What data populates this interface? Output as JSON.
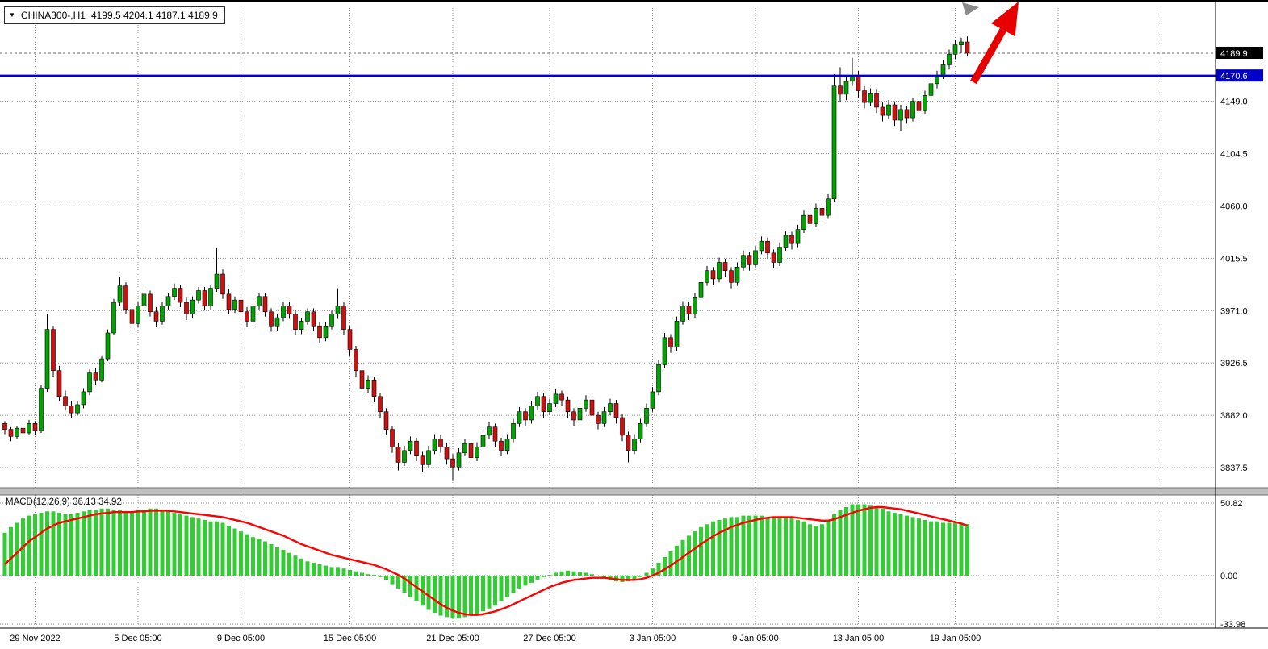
{
  "symbol_badge": {
    "dropdown_icon": "▼",
    "symbol": "CHINA300-,H1",
    "ohlc": "4199.5 4204.1 4187.1 4189.9"
  },
  "colors": {
    "up": "#00A400",
    "down": "#CC1111",
    "wick": "#000000",
    "grid": "#8C8C8C",
    "macd_hist": "#32CD32",
    "macd_signal": "#FF0000",
    "level_line": "#0000C8",
    "last_tag_bg": "#000000",
    "level_tag_bg": "#0000C8",
    "arrow": "#E60000",
    "cursor_gray": "#8A8A8A",
    "separator": "#BFBFBF",
    "axis_text": "#000000"
  },
  "chart_data": {
    "type": "candlestick",
    "symbol": "CHINA300-",
    "timeframe": "H1",
    "last_bar_ohlc": {
      "open": 4199.5,
      "high": 4204.1,
      "low": 4187.1,
      "close": 4189.9
    },
    "last_price_line": {
      "price": 4189.9,
      "label": "4189.9"
    },
    "horizontal_level": {
      "price": 4170.6,
      "label": "4170.6"
    },
    "price_axis": {
      "gridlines": [
        {
          "text": "4149.0",
          "value": 4149.0
        },
        {
          "text": "4104.5",
          "value": 4104.5
        },
        {
          "text": "4060.0",
          "value": 4060.0
        },
        {
          "text": "4015.5",
          "value": 4015.5
        },
        {
          "text": "3971.0",
          "value": 3971.0
        },
        {
          "text": "3926.5",
          "value": 3926.5
        },
        {
          "text": "3882.0",
          "value": 3882.0
        },
        {
          "text": "3837.5",
          "value": 3837.5
        }
      ]
    },
    "time_axis": [
      {
        "label": "29 Nov 2022",
        "i": 5
      },
      {
        "label": "5 Dec 05:00",
        "i": 22
      },
      {
        "label": "9 Dec 05:00",
        "i": 39
      },
      {
        "label": "15 Dec 05:00",
        "i": 57
      },
      {
        "label": "21 Dec 05:00",
        "i": 74
      },
      {
        "label": "27 Dec 05:00",
        "i": 90
      },
      {
        "label": "3 Jan 05:00",
        "i": 107
      },
      {
        "label": "9 Jan 05:00",
        "i": 124
      },
      {
        "label": "13 Jan 05:00",
        "i": 141
      },
      {
        "label": "19 Jan 05:00",
        "i": 157
      }
    ],
    "extra_grid_indices": [
      174,
      191
    ],
    "candles": [
      [
        3875,
        3877,
        3866,
        3870
      ],
      [
        3870,
        3872,
        3860,
        3864
      ],
      [
        3864,
        3873,
        3862,
        3871
      ],
      [
        3871,
        3874,
        3863,
        3867
      ],
      [
        3867,
        3878,
        3865,
        3875
      ],
      [
        3875,
        3877,
        3865,
        3869
      ],
      [
        3869,
        3908,
        3867,
        3905
      ],
      [
        3905,
        3968,
        3902,
        3955
      ],
      [
        3955,
        3958,
        3915,
        3920
      ],
      [
        3920,
        3924,
        3894,
        3898
      ],
      [
        3898,
        3903,
        3886,
        3890
      ],
      [
        3890,
        3894,
        3880,
        3884
      ],
      [
        3884,
        3894,
        3882,
        3891
      ],
      [
        3891,
        3905,
        3888,
        3902
      ],
      [
        3902,
        3921,
        3899,
        3918
      ],
      [
        3918,
        3922,
        3908,
        3912
      ],
      [
        3912,
        3933,
        3910,
        3930
      ],
      [
        3930,
        3955,
        3928,
        3952
      ],
      [
        3952,
        3981,
        3950,
        3978
      ],
      [
        3978,
        4000,
        3975,
        3992
      ],
      [
        3992,
        3995,
        3968,
        3972
      ],
      [
        3972,
        3976,
        3955,
        3960
      ],
      [
        3960,
        3978,
        3957,
        3975
      ],
      [
        3975,
        3989,
        3972,
        3985
      ],
      [
        3985,
        3988,
        3966,
        3970
      ],
      [
        3970,
        3974,
        3957,
        3962
      ],
      [
        3962,
        3978,
        3959,
        3975
      ],
      [
        3975,
        3986,
        3972,
        3983
      ],
      [
        3983,
        3994,
        3980,
        3990
      ],
      [
        3990,
        3993,
        3974,
        3978
      ],
      [
        3978,
        3982,
        3963,
        3968
      ],
      [
        3968,
        3983,
        3965,
        3980
      ],
      [
        3980,
        3991,
        3977,
        3988
      ],
      [
        3988,
        3991,
        3971,
        3975
      ],
      [
        3975,
        3993,
        3972,
        3990
      ],
      [
        3990,
        4024,
        3987,
        4002
      ],
      [
        4002,
        4006,
        3981,
        3985
      ],
      [
        3985,
        3989,
        3968,
        3972
      ],
      [
        3972,
        3983,
        3969,
        3980
      ],
      [
        3980,
        3984,
        3966,
        3970
      ],
      [
        3970,
        3974,
        3957,
        3962
      ],
      [
        3962,
        3978,
        3959,
        3975
      ],
      [
        3975,
        3986,
        3972,
        3983
      ],
      [
        3983,
        3986,
        3966,
        3970
      ],
      [
        3970,
        3973,
        3953,
        3958
      ],
      [
        3958,
        3968,
        3954,
        3965
      ],
      [
        3965,
        3978,
        3962,
        3975
      ],
      [
        3975,
        3978,
        3964,
        3968
      ],
      [
        3968,
        3971,
        3950,
        3955
      ],
      [
        3955,
        3965,
        3951,
        3962
      ],
      [
        3962,
        3973,
        3959,
        3970
      ],
      [
        3970,
        3973,
        3954,
        3958
      ],
      [
        3958,
        3961,
        3943,
        3948
      ],
      [
        3948,
        3961,
        3945,
        3958
      ],
      [
        3958,
        3971,
        3955,
        3968
      ],
      [
        3968,
        3990,
        3964,
        3975
      ],
      [
        3975,
        3978,
        3950,
        3955
      ],
      [
        3955,
        3958,
        3933,
        3938
      ],
      [
        3938,
        3941,
        3915,
        3920
      ],
      [
        3920,
        3924,
        3900,
        3905
      ],
      [
        3905,
        3916,
        3901,
        3912
      ],
      [
        3912,
        3915,
        3893,
        3898
      ],
      [
        3898,
        3901,
        3880,
        3885
      ],
      [
        3885,
        3888,
        3865,
        3870
      ],
      [
        3870,
        3873,
        3850,
        3855
      ],
      [
        3855,
        3858,
        3835,
        3842
      ],
      [
        3842,
        3856,
        3839,
        3852
      ],
      [
        3852,
        3864,
        3849,
        3860
      ],
      [
        3860,
        3863,
        3843,
        3848
      ],
      [
        3848,
        3851,
        3834,
        3840
      ],
      [
        3840,
        3856,
        3837,
        3852
      ],
      [
        3852,
        3866,
        3849,
        3862
      ],
      [
        3862,
        3865,
        3850,
        3855
      ],
      [
        3855,
        3858,
        3840,
        3845
      ],
      [
        3845,
        3849,
        3827,
        3838
      ],
      [
        3838,
        3854,
        3835,
        3850
      ],
      [
        3850,
        3862,
        3847,
        3858
      ],
      [
        3858,
        3861,
        3841,
        3846
      ],
      [
        3846,
        3859,
        3843,
        3855
      ],
      [
        3855,
        3869,
        3852,
        3865
      ],
      [
        3865,
        3876,
        3862,
        3872
      ],
      [
        3872,
        3875,
        3855,
        3860
      ],
      [
        3860,
        3863,
        3847,
        3852
      ],
      [
        3852,
        3866,
        3849,
        3862
      ],
      [
        3862,
        3879,
        3859,
        3875
      ],
      [
        3875,
        3889,
        3872,
        3885
      ],
      [
        3885,
        3888,
        3873,
        3878
      ],
      [
        3878,
        3894,
        3875,
        3890
      ],
      [
        3890,
        3902,
        3887,
        3898
      ],
      [
        3898,
        3901,
        3880,
        3885
      ],
      [
        3885,
        3896,
        3882,
        3892
      ],
      [
        3892,
        3904,
        3889,
        3900
      ],
      [
        3900,
        3903,
        3890,
        3895
      ],
      [
        3895,
        3898,
        3880,
        3885
      ],
      [
        3885,
        3888,
        3873,
        3878
      ],
      [
        3878,
        3892,
        3875,
        3888
      ],
      [
        3888,
        3899,
        3885,
        3895
      ],
      [
        3895,
        3898,
        3877,
        3882
      ],
      [
        3882,
        3885,
        3870,
        3875
      ],
      [
        3875,
        3889,
        3872,
        3885
      ],
      [
        3885,
        3896,
        3882,
        3892
      ],
      [
        3892,
        3895,
        3875,
        3880
      ],
      [
        3880,
        3883,
        3860,
        3865
      ],
      [
        3865,
        3868,
        3842,
        3852
      ],
      [
        3852,
        3866,
        3849,
        3862
      ],
      [
        3862,
        3879,
        3859,
        3875
      ],
      [
        3875,
        3892,
        3872,
        3888
      ],
      [
        3888,
        3906,
        3885,
        3902
      ],
      [
        3902,
        3929,
        3899,
        3925
      ],
      [
        3925,
        3952,
        3922,
        3948
      ],
      [
        3948,
        3951,
        3935,
        3940
      ],
      [
        3940,
        3966,
        3937,
        3962
      ],
      [
        3962,
        3979,
        3959,
        3975
      ],
      [
        3975,
        3978,
        3963,
        3968
      ],
      [
        3968,
        3986,
        3965,
        3982
      ],
      [
        3982,
        3999,
        3979,
        3995
      ],
      [
        3995,
        4009,
        3992,
        4005
      ],
      [
        4005,
        4008,
        3993,
        3998
      ],
      [
        3998,
        4016,
        3995,
        4012
      ],
      [
        4012,
        4015,
        4000,
        4005
      ],
      [
        4005,
        4008,
        3990,
        3995
      ],
      [
        3995,
        4012,
        3992,
        4008
      ],
      [
        4008,
        4022,
        4005,
        4018
      ],
      [
        4018,
        4021,
        4005,
        4010
      ],
      [
        4010,
        4026,
        4007,
        4022
      ],
      [
        4022,
        4034,
        4019,
        4030
      ],
      [
        4030,
        4033,
        4015,
        4020
      ],
      [
        4020,
        4023,
        4007,
        4012
      ],
      [
        4012,
        4029,
        4009,
        4025
      ],
      [
        4025,
        4039,
        4022,
        4035
      ],
      [
        4035,
        4038,
        4023,
        4028
      ],
      [
        4028,
        4044,
        4025,
        4040
      ],
      [
        4040,
        4056,
        4037,
        4052
      ],
      [
        4052,
        4055,
        4040,
        4045
      ],
      [
        4045,
        4062,
        4042,
        4058
      ],
      [
        4058,
        4064,
        4046,
        4052
      ],
      [
        4052,
        4070,
        4049,
        4066
      ],
      [
        4066,
        4172,
        4063,
        4162
      ],
      [
        4162,
        4178,
        4148,
        4155
      ],
      [
        4155,
        4170,
        4150,
        4166
      ],
      [
        4166,
        4186,
        4162,
        4170
      ],
      [
        4170,
        4175,
        4152,
        4158
      ],
      [
        4158,
        4162,
        4143,
        4148
      ],
      [
        4148,
        4160,
        4145,
        4156
      ],
      [
        4156,
        4159,
        4139,
        4144
      ],
      [
        4144,
        4148,
        4132,
        4137
      ],
      [
        4137,
        4150,
        4134,
        4146
      ],
      [
        4146,
        4149,
        4128,
        4133
      ],
      [
        4133,
        4146,
        4124,
        4142
      ],
      [
        4142,
        4145,
        4130,
        4135
      ],
      [
        4135,
        4152,
        4132,
        4149
      ],
      [
        4149,
        4153,
        4136,
        4141
      ],
      [
        4141,
        4158,
        4138,
        4154
      ],
      [
        4154,
        4168,
        4151,
        4164
      ],
      [
        4164,
        4175,
        4160,
        4171
      ],
      [
        4171,
        4184,
        4168,
        4180
      ],
      [
        4180,
        4193,
        4176,
        4189
      ],
      [
        4189,
        4201,
        4185,
        4197
      ],
      [
        4197,
        4203,
        4190,
        4199.5
      ],
      [
        4199.5,
        4204.1,
        4187.1,
        4189.9
      ]
    ],
    "macd": {
      "label": "MACD(12,26,9) 36.13 34.92",
      "params": "12,26,9",
      "macd_value": 36.13,
      "signal_value": 34.92,
      "axis": [
        {
          "text": "50.82",
          "value": 50.82
        },
        {
          "text": "0.00",
          "value": 0
        },
        {
          "text": "-33.98",
          "value": -33.98
        }
      ],
      "histogram": [
        30,
        34,
        37,
        40,
        42,
        43,
        44,
        45,
        45,
        44,
        43,
        43,
        44,
        45,
        46,
        46,
        47,
        47,
        46,
        46,
        45,
        45,
        46,
        46,
        47,
        47,
        46,
        45,
        44,
        43,
        42,
        41,
        40,
        39,
        38,
        38,
        37,
        35,
        33,
        31,
        29,
        27,
        26,
        24,
        22,
        20,
        18,
        16,
        14,
        12,
        10,
        9,
        8,
        7,
        6,
        6,
        5,
        4,
        3,
        2,
        1,
        0.5,
        -1,
        -3,
        -6,
        -9,
        -12,
        -15,
        -18,
        -21,
        -24,
        -26,
        -28,
        -29,
        -30,
        -30,
        -29,
        -28,
        -27,
        -25,
        -23,
        -21,
        -18,
        -15,
        -12,
        -9,
        -7,
        -5,
        -3,
        -1,
        0.5,
        2,
        3,
        3.5,
        3,
        2.5,
        2,
        1,
        -0.5,
        -2,
        -3,
        -4,
        -4.5,
        -4,
        -3,
        -1,
        2,
        5,
        9,
        13,
        17,
        21,
        25,
        28,
        31,
        34,
        36,
        38,
        39,
        40,
        41,
        41,
        42,
        42,
        42,
        42,
        41,
        41,
        41,
        41,
        40,
        39,
        38,
        36,
        35,
        36,
        39,
        43,
        46,
        48,
        50,
        50,
        50,
        49,
        48,
        47,
        45,
        44,
        43,
        42,
        41,
        40,
        39,
        38,
        38,
        37,
        37,
        37,
        36.5,
        36.13
      ],
      "signal": [
        8,
        12,
        16,
        20,
        24,
        27,
        30,
        33,
        35,
        37,
        38,
        39,
        40,
        41,
        42,
        43,
        43.5,
        44,
        44.5,
        44.5,
        44.5,
        44.5,
        45,
        45,
        45.5,
        45.5,
        45.5,
        45.5,
        45,
        44.5,
        44,
        43.5,
        43,
        42.5,
        42,
        41.5,
        41,
        40,
        39,
        38,
        37,
        35.5,
        34,
        32.5,
        31,
        29.5,
        28,
        26,
        24,
        22,
        20.5,
        19,
        17.5,
        16,
        14.5,
        13.5,
        12.5,
        11.5,
        10.5,
        9.5,
        8.5,
        7.5,
        6,
        4.5,
        2.5,
        0.5,
        -2,
        -5,
        -8,
        -11,
        -14,
        -17,
        -20,
        -22.5,
        -24.5,
        -26,
        -27,
        -27.5,
        -27.5,
        -27,
        -26,
        -25,
        -23.5,
        -22,
        -20,
        -18,
        -16,
        -14,
        -12,
        -10,
        -8,
        -6.5,
        -5,
        -4,
        -3,
        -2.5,
        -2,
        -1.5,
        -1.5,
        -1.5,
        -2,
        -2.5,
        -3,
        -3,
        -3,
        -2.5,
        -1.5,
        0,
        2,
        4.5,
        7,
        10,
        13,
        16,
        19,
        22,
        25,
        27.5,
        30,
        32,
        34,
        35.5,
        37,
        38,
        39,
        40,
        40.5,
        41,
        41,
        41,
        41,
        40.5,
        40,
        39.5,
        39,
        38.5,
        38.5,
        39.5,
        41,
        42.5,
        44,
        45.5,
        46.5,
        47.5,
        48,
        48,
        47.5,
        47,
        46.5,
        45.5,
        44.5,
        43.5,
        42.5,
        41.5,
        40.5,
        39.5,
        38.5,
        37.5,
        36.5,
        34.92
      ]
    },
    "annotations": {
      "arrow": {
        "direction": "up-right"
      },
      "cursor_triangle": true
    }
  }
}
